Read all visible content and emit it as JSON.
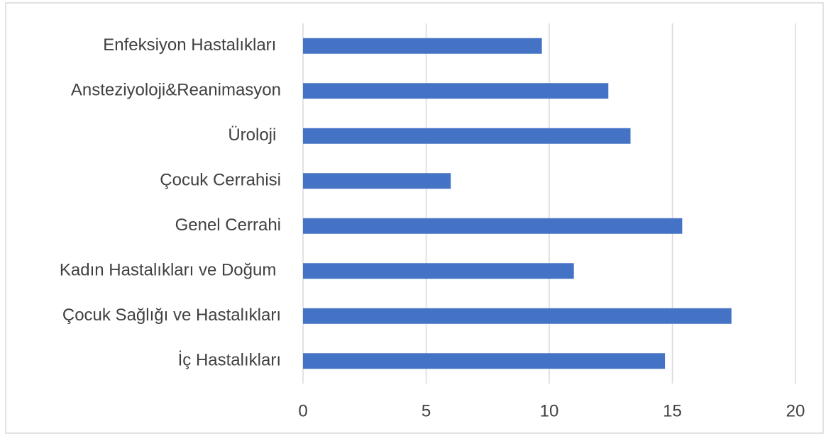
{
  "chart_data": {
    "type": "barh",
    "categories": [
      "Enfeksiyon Hastalıkları ",
      "Ansteziyoloji&Reanimasyon",
      "Üroloji ",
      "Çocuk Cerrahisi",
      "Genel Cerrahi",
      "Kadın Hastalıkları ve Doğum ",
      "Çocuk Sağlığı ve Hastalıkları",
      "İç Hastalıkları"
    ],
    "values": [
      9.7,
      12.4,
      13.3,
      6,
      15.4,
      11,
      17.4,
      14.7
    ],
    "color": "#4472c4",
    "xlim": [
      0,
      20
    ],
    "xticks": [
      0,
      5,
      10,
      15,
      20
    ],
    "grid": true
  }
}
